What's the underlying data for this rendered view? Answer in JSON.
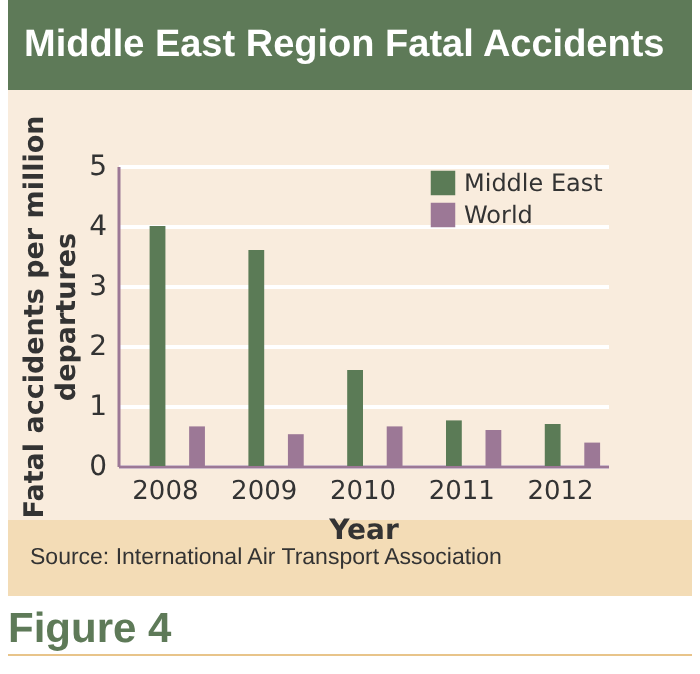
{
  "chart_data": {
    "type": "bar",
    "title": "Middle East Region Fatal Accidents",
    "xlabel": "Year",
    "ylabel": "Fatal accidents per million departures",
    "categories": [
      "2008",
      "2009",
      "2010",
      "2011",
      "2012"
    ],
    "series": [
      {
        "name": "Middle East",
        "color": "#5b7b56",
        "values": [
          4.0,
          3.6,
          1.6,
          0.76,
          0.7
        ]
      },
      {
        "name": "World",
        "color": "#9c7896",
        "values": [
          0.66,
          0.53,
          0.66,
          0.6,
          0.39
        ]
      }
    ],
    "ylim": [
      0,
      5
    ],
    "yticks": [
      0,
      1,
      2,
      3,
      4,
      5
    ],
    "grid": "y",
    "legend": "top right",
    "annotations": [
      "Source: International Air Transport Association",
      "Figure 4"
    ]
  }
}
